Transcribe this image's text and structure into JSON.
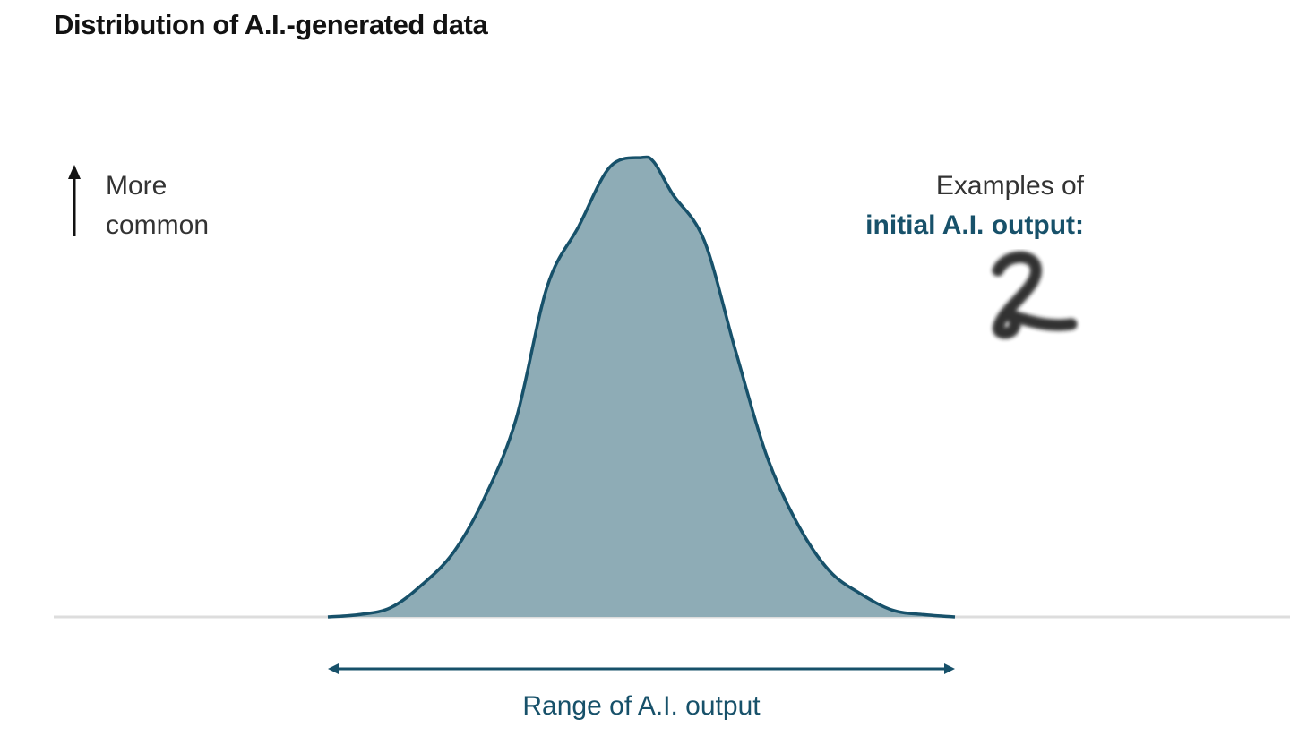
{
  "title": "Distribution of A.I.-generated data",
  "y_axis": {
    "label_line1": "More",
    "label_line2": "common",
    "icon": "up-arrow-icon"
  },
  "examples": {
    "line1": "Examples of",
    "line2": "initial A.I. output:",
    "sample_image": "handwritten-digit-2"
  },
  "range_label": "Range of A.I. output",
  "colors": {
    "fill": "#8eacb6",
    "stroke": "#17516a",
    "baseline": "#dddddd",
    "text": "#333333",
    "accent": "#17516a"
  },
  "chart_data": {
    "type": "area",
    "title": "Distribution of A.I.-generated data",
    "xlabel": "Range of A.I. output",
    "ylabel": "More common",
    "x": [
      0,
      0.05,
      0.1,
      0.15,
      0.2,
      0.25,
      0.3,
      0.35,
      0.4,
      0.45,
      0.5,
      0.52,
      0.55,
      0.6,
      0.65,
      0.7,
      0.75,
      0.8,
      0.85,
      0.9,
      0.95,
      1
    ],
    "y": [
      0,
      0.005,
      0.02,
      0.07,
      0.14,
      0.26,
      0.43,
      0.72,
      0.85,
      0.98,
      1.0,
      0.99,
      0.92,
      0.82,
      0.58,
      0.35,
      0.2,
      0.1,
      0.05,
      0.015,
      0.005,
      0
    ],
    "xlim": [
      0,
      1
    ],
    "ylim": [
      0,
      1
    ],
    "grid": false,
    "legend": "none"
  }
}
